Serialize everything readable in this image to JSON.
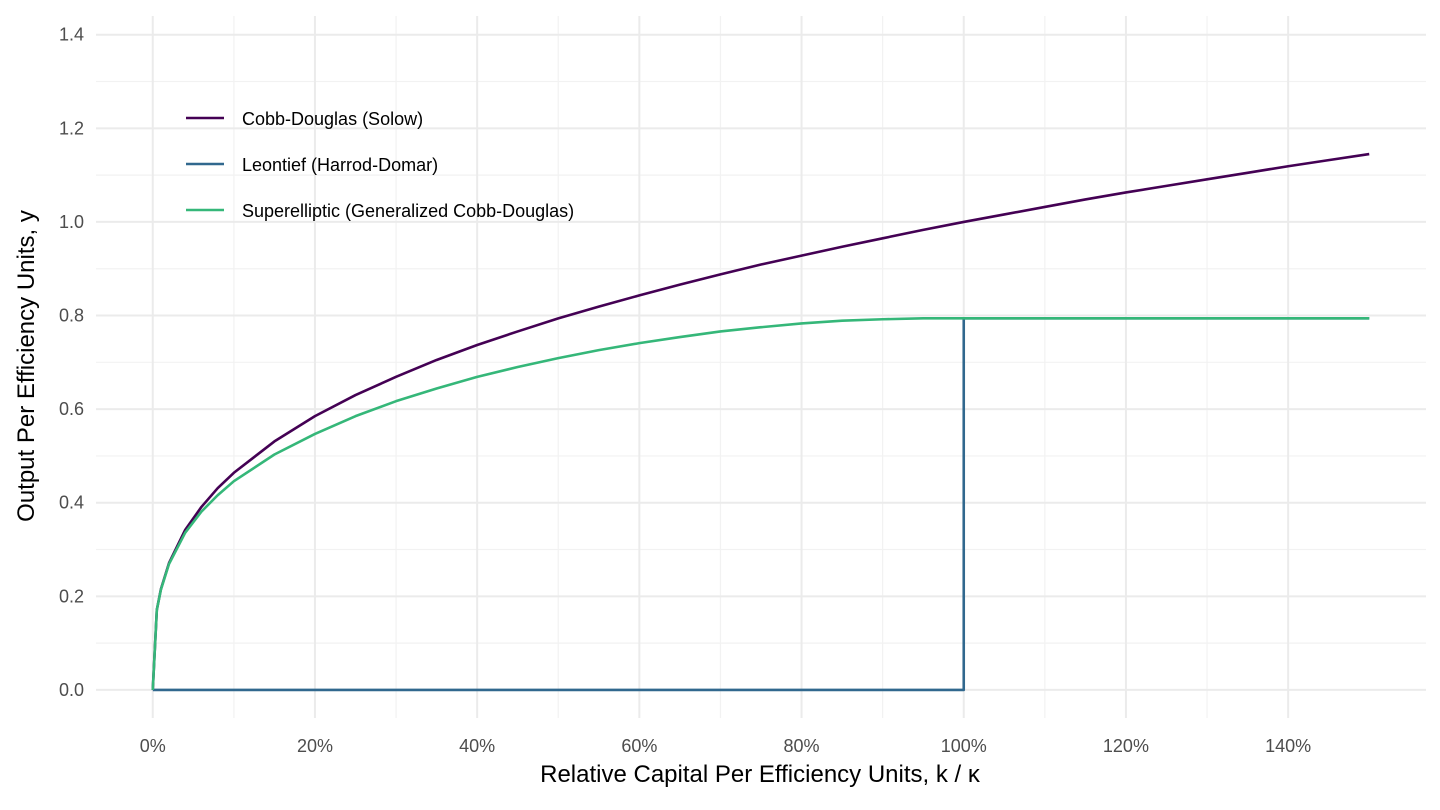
{
  "chart_data": {
    "type": "line",
    "title": "",
    "xlabel": "Relative Capital Per Efficiency Units, k / κ",
    "ylabel": "Output Per Efficiency Units, y",
    "xlim": [
      -0.07,
      1.57
    ],
    "ylim": [
      -0.06,
      1.44
    ],
    "x_ticks": [
      0,
      0.2,
      0.4,
      0.6,
      0.8,
      1.0,
      1.2,
      1.4
    ],
    "x_tick_labels": [
      "0%",
      "20%",
      "40%",
      "60%",
      "80%",
      "100%",
      "120%",
      "140%"
    ],
    "y_ticks": [
      0,
      0.2,
      0.4,
      0.6,
      0.8,
      1.0,
      1.2,
      1.4
    ],
    "y_tick_labels": [
      "0.0",
      "0.2",
      "0.4",
      "0.6",
      "0.8",
      "1.0",
      "1.2",
      "1.4"
    ],
    "grid": true,
    "legend_position": "top-left",
    "series": [
      {
        "name": "Cobb-Douglas (Solow)",
        "color": "#440154",
        "x": [
          0,
          0.005,
          0.01,
          0.02,
          0.04,
          0.06,
          0.08,
          0.1,
          0.15,
          0.2,
          0.25,
          0.3,
          0.35,
          0.4,
          0.45,
          0.5,
          0.55,
          0.6,
          0.65,
          0.7,
          0.75,
          0.8,
          0.85,
          0.9,
          0.95,
          1.0,
          1.05,
          1.1,
          1.15,
          1.2,
          1.25,
          1.3,
          1.35,
          1.4,
          1.45,
          1.5
        ],
        "y": [
          0,
          0.171,
          0.215,
          0.271,
          0.342,
          0.391,
          0.431,
          0.464,
          0.531,
          0.585,
          0.63,
          0.669,
          0.705,
          0.737,
          0.766,
          0.794,
          0.819,
          0.843,
          0.866,
          0.888,
          0.909,
          0.928,
          0.947,
          0.965,
          0.983,
          1.0,
          1.016,
          1.032,
          1.048,
          1.063,
          1.077,
          1.091,
          1.105,
          1.119,
          1.132,
          1.145
        ]
      },
      {
        "name": "Leontief (Harrod-Domar)",
        "color": "#31688e",
        "x": [
          0,
          1.0,
          1.0,
          1.5
        ],
        "y": [
          0,
          0,
          0.794,
          0.794
        ]
      },
      {
        "name": "Superelliptic (Generalized Cobb-Douglas)",
        "color": "#35b779",
        "x": [
          0,
          0.005,
          0.01,
          0.02,
          0.04,
          0.06,
          0.08,
          0.1,
          0.15,
          0.2,
          0.25,
          0.3,
          0.35,
          0.4,
          0.45,
          0.5,
          0.55,
          0.6,
          0.65,
          0.7,
          0.75,
          0.8,
          0.85,
          0.9,
          0.95,
          1.0,
          1.5
        ],
        "y": [
          0,
          0.171,
          0.214,
          0.269,
          0.336,
          0.381,
          0.416,
          0.446,
          0.503,
          0.547,
          0.585,
          0.617,
          0.644,
          0.669,
          0.69,
          0.709,
          0.726,
          0.741,
          0.754,
          0.766,
          0.775,
          0.783,
          0.789,
          0.792,
          0.794,
          0.794,
          0.794
        ]
      }
    ]
  }
}
